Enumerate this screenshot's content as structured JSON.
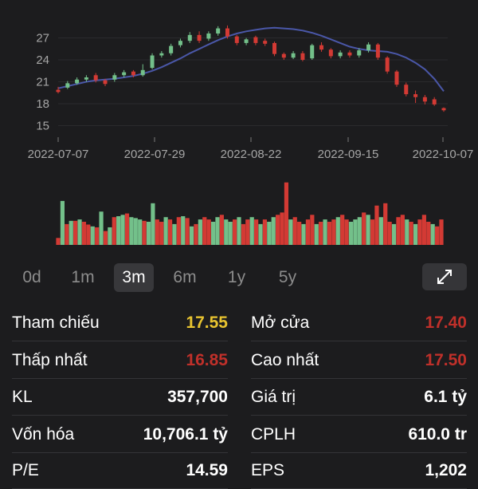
{
  "chart_data": {
    "type": "candlestick",
    "y_ticks": [
      "27",
      "24",
      "21",
      "18",
      "15"
    ],
    "x_ticks": [
      "2022-07-07",
      "2022-07-29",
      "2022-08-22",
      "2022-09-15",
      "2022-10-07"
    ],
    "ylim": [
      15,
      28.4
    ],
    "candles": [
      {
        "o": 19.6,
        "c": 19.9,
        "h": 20.3,
        "l": 19.4,
        "up": false
      },
      {
        "o": 20.2,
        "c": 20.8,
        "h": 21.1,
        "l": 20.0,
        "up": true
      },
      {
        "o": 20.8,
        "c": 21.3,
        "h": 21.6,
        "l": 20.6,
        "up": true
      },
      {
        "o": 21.3,
        "c": 21.6,
        "h": 21.9,
        "l": 21.0,
        "up": true
      },
      {
        "o": 21.9,
        "c": 21.2,
        "h": 22.2,
        "l": 20.9,
        "up": false
      },
      {
        "o": 21.2,
        "c": 20.7,
        "h": 21.4,
        "l": 20.4,
        "up": false
      },
      {
        "o": 21.3,
        "c": 21.9,
        "h": 22.2,
        "l": 21.0,
        "up": true
      },
      {
        "o": 21.9,
        "c": 22.3,
        "h": 22.6,
        "l": 21.6,
        "up": true
      },
      {
        "o": 22.4,
        "c": 21.9,
        "h": 22.6,
        "l": 21.6,
        "up": false
      },
      {
        "o": 21.9,
        "c": 22.6,
        "h": 23.4,
        "l": 21.7,
        "up": true
      },
      {
        "o": 22.9,
        "c": 24.6,
        "h": 24.9,
        "l": 22.7,
        "up": true
      },
      {
        "o": 24.6,
        "c": 24.9,
        "h": 25.2,
        "l": 24.3,
        "up": true
      },
      {
        "o": 24.9,
        "c": 25.9,
        "h": 26.2,
        "l": 24.6,
        "up": true
      },
      {
        "o": 26.0,
        "c": 26.6,
        "h": 26.9,
        "l": 25.7,
        "up": true
      },
      {
        "o": 26.6,
        "c": 27.4,
        "h": 27.8,
        "l": 26.3,
        "up": true
      },
      {
        "o": 27.4,
        "c": 26.6,
        "h": 27.9,
        "l": 26.3,
        "up": false
      },
      {
        "o": 26.9,
        "c": 27.6,
        "h": 27.9,
        "l": 26.6,
        "up": true
      },
      {
        "o": 27.6,
        "c": 28.3,
        "h": 28.6,
        "l": 27.3,
        "up": true
      },
      {
        "o": 28.3,
        "c": 27.2,
        "h": 28.7,
        "l": 26.9,
        "up": false
      },
      {
        "o": 27.2,
        "c": 26.3,
        "h": 27.4,
        "l": 26.0,
        "up": false
      },
      {
        "o": 26.3,
        "c": 26.8,
        "h": 27.0,
        "l": 26.0,
        "up": true
      },
      {
        "o": 27.1,
        "c": 26.3,
        "h": 27.3,
        "l": 26.0,
        "up": false
      },
      {
        "o": 26.6,
        "c": 26.2,
        "h": 26.9,
        "l": 25.9,
        "up": false
      },
      {
        "o": 26.3,
        "c": 24.8,
        "h": 26.5,
        "l": 24.5,
        "up": false
      },
      {
        "o": 24.8,
        "c": 24.3,
        "h": 25.0,
        "l": 24.0,
        "up": false
      },
      {
        "o": 24.3,
        "c": 24.9,
        "h": 25.2,
        "l": 24.1,
        "up": true
      },
      {
        "o": 24.9,
        "c": 24.0,
        "h": 25.2,
        "l": 23.8,
        "up": false
      },
      {
        "o": 24.2,
        "c": 26.0,
        "h": 26.2,
        "l": 24.0,
        "up": true
      },
      {
        "o": 26.0,
        "c": 25.4,
        "h": 26.4,
        "l": 25.1,
        "up": false
      },
      {
        "o": 25.4,
        "c": 24.5,
        "h": 25.6,
        "l": 24.2,
        "up": false
      },
      {
        "o": 24.5,
        "c": 25.0,
        "h": 25.3,
        "l": 24.2,
        "up": true
      },
      {
        "o": 25.0,
        "c": 24.6,
        "h": 25.3,
        "l": 24.3,
        "up": false
      },
      {
        "o": 24.6,
        "c": 25.3,
        "h": 25.6,
        "l": 24.3,
        "up": true
      },
      {
        "o": 25.3,
        "c": 26.1,
        "h": 26.4,
        "l": 25.0,
        "up": true
      },
      {
        "o": 26.1,
        "c": 24.3,
        "h": 26.3,
        "l": 24.0,
        "up": false
      },
      {
        "o": 24.3,
        "c": 22.4,
        "h": 24.5,
        "l": 22.1,
        "up": false
      },
      {
        "o": 22.4,
        "c": 20.6,
        "h": 22.6,
        "l": 20.3,
        "up": false
      },
      {
        "o": 20.6,
        "c": 19.3,
        "h": 20.9,
        "l": 19.0,
        "up": false
      },
      {
        "o": 19.3,
        "c": 18.9,
        "h": 19.8,
        "l": 18.1,
        "up": false
      },
      {
        "o": 18.9,
        "c": 18.3,
        "h": 19.2,
        "l": 17.9,
        "up": false
      },
      {
        "o": 18.6,
        "c": 17.9,
        "h": 18.9,
        "l": 17.7,
        "up": false
      },
      {
        "o": 17.4,
        "c": 17.1,
        "h": 17.5,
        "l": 16.9,
        "up": false
      }
    ],
    "ma": [
      20.1,
      20.4,
      20.7,
      21.0,
      21.2,
      21.3,
      21.4,
      21.6,
      21.8,
      22.1,
      22.5,
      23.0,
      23.6,
      24.2,
      24.9,
      25.5,
      26.1,
      26.7,
      27.2,
      27.6,
      27.9,
      28.1,
      28.3,
      28.4,
      28.3,
      28.2,
      28.0,
      27.7,
      27.3,
      26.8,
      26.3,
      25.8,
      25.5,
      25.3,
      25.2,
      25.1,
      24.8,
      24.3,
      23.6,
      22.7,
      21.4,
      19.7
    ],
    "volume": [
      0.15,
      0.95,
      0.45,
      0.52,
      0.52,
      0.55,
      0.5,
      0.44,
      0.4,
      0.38,
      0.72,
      0.3,
      0.38,
      0.6,
      0.62,
      0.65,
      0.68,
      0.6,
      0.58,
      0.55,
      0.52,
      0.5,
      0.9,
      0.55,
      0.5,
      0.6,
      0.55,
      0.45,
      0.6,
      0.62,
      0.58,
      0.4,
      0.45,
      0.55,
      0.6,
      0.55,
      0.5,
      0.6,
      0.65,
      0.55,
      0.5,
      0.55,
      0.6,
      0.45,
      0.55,
      0.6,
      0.55,
      0.45,
      0.55,
      0.5,
      0.6,
      0.65,
      0.7,
      1.35,
      0.55,
      0.6,
      0.5,
      0.45,
      0.55,
      0.65,
      0.45,
      0.5,
      0.55,
      0.5,
      0.55,
      0.6,
      0.65,
      0.55,
      0.5,
      0.55,
      0.6,
      0.7,
      0.65,
      0.55,
      0.85,
      0.6,
      0.9,
      0.5,
      0.45,
      0.6,
      0.65,
      0.55,
      0.5,
      0.45,
      0.55,
      0.65,
      0.5,
      0.45,
      0.4,
      0.55
    ],
    "volume_up": [
      false,
      true,
      false,
      true,
      false,
      true,
      false,
      false,
      true,
      false,
      true,
      false,
      true,
      false,
      true,
      true,
      false,
      true,
      true,
      true,
      false,
      true,
      true,
      false,
      false,
      true,
      false,
      true,
      false,
      true,
      false,
      true,
      false,
      true,
      false,
      false,
      true,
      true,
      false,
      true,
      true,
      false,
      true,
      false,
      false,
      true,
      false,
      true,
      false,
      true,
      true,
      false,
      false,
      false,
      true,
      false,
      false,
      true,
      false,
      false,
      true,
      false,
      true,
      false,
      false,
      true,
      false,
      false,
      true,
      true,
      true,
      false,
      true,
      false,
      false,
      true,
      false,
      false,
      true,
      false,
      false,
      true,
      false,
      true,
      false,
      false,
      false,
      true,
      false,
      false
    ]
  },
  "colors": {
    "up": "#73c08a",
    "down": "#d33a34",
    "ma": "#4a57a8",
    "yellow": "#e8c430",
    "red": "#c0302a",
    "white": "#ffffff"
  },
  "range_tabs": [
    {
      "label": "0d"
    },
    {
      "label": "1m"
    },
    {
      "label": "3m",
      "active": true
    },
    {
      "label": "6m"
    },
    {
      "label": "1y"
    },
    {
      "label": "5y"
    }
  ],
  "expand_icon": "expand-arrows-icon",
  "stats": [
    {
      "label": "Tham chiếu",
      "value": "17.55",
      "color": "yellow"
    },
    {
      "label": "Mở cửa",
      "value": "17.40",
      "color": "red"
    },
    {
      "label": "Thấp nhất",
      "value": "16.85",
      "color": "red"
    },
    {
      "label": "Cao nhất",
      "value": "17.50",
      "color": "red"
    },
    {
      "label": "KL",
      "value": "357,700",
      "color": "white"
    },
    {
      "label": "Giá trị",
      "value": "6.1 tỷ",
      "color": "white"
    },
    {
      "label": "Vốn hóa",
      "value": "10,706.1 tỷ",
      "color": "white"
    },
    {
      "label": "CPLH",
      "value": "610.0 tr",
      "color": "white"
    },
    {
      "label": "P/E",
      "value": "14.59",
      "color": "white"
    },
    {
      "label": "EPS",
      "value": "1,202",
      "color": "white"
    }
  ]
}
